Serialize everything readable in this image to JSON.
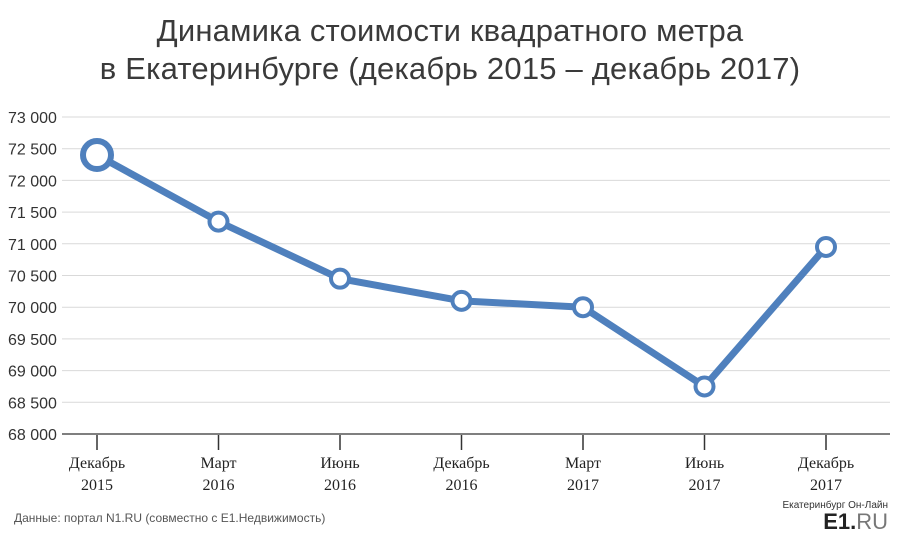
{
  "chart_data": {
    "type": "line",
    "title": [
      "Динамика стоимости квадратного метра",
      "в Екатеринбурге (декабрь 2015 – декабрь 2017)"
    ],
    "categories": [
      [
        "Декабрь",
        "2015"
      ],
      [
        "Март",
        "2016"
      ],
      [
        "Июнь",
        "2016"
      ],
      [
        "Декабрь",
        "2016"
      ],
      [
        "Март",
        "2017"
      ],
      [
        "Июнь",
        "2017"
      ],
      [
        "Декабрь",
        "2017"
      ]
    ],
    "values": [
      72400,
      71350,
      70450,
      70100,
      70000,
      68750,
      70950
    ],
    "y_ticks": [
      "73 000",
      "72 500",
      "72 000",
      "71 500",
      "71 000",
      "70 500",
      "70 000",
      "69 500",
      "69 000",
      "68 500",
      "68 000"
    ],
    "ylim": [
      68000,
      73000
    ],
    "grid": true,
    "line_color": "#4f80bd"
  },
  "footer": {
    "source": "Данные: портал N1.RU (совместно с Е1.Недвижимость)",
    "logo_top": "Екатеринбург Он-Лайн",
    "logo_e1": "E1.",
    "logo_ru": "RU"
  }
}
